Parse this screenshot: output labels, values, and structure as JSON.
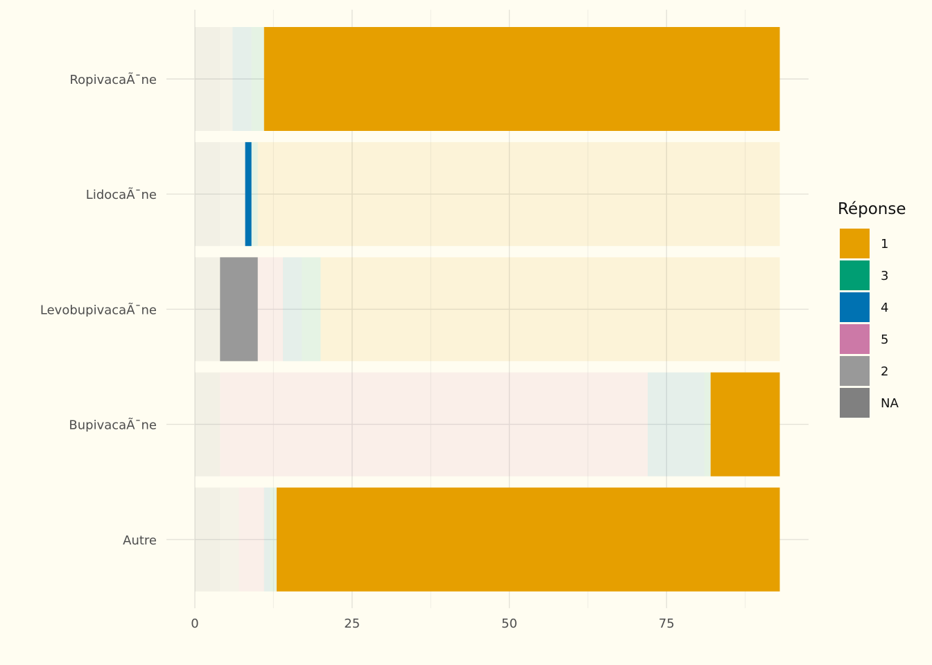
{
  "chart_data": {
    "type": "bar",
    "orientation": "horizontal",
    "stacked": true,
    "categories": [
      "RopivacaÃ¯ne",
      "LidocaÃ¯ne",
      "LevobupivacaÃ¯ne",
      "BupivacaÃ¯ne",
      "Autre"
    ],
    "x_ticks": [
      0,
      25,
      50,
      75
    ],
    "xlim": [
      0,
      93
    ],
    "grid": true,
    "legend": {
      "title": "Réponse",
      "position": "right",
      "entries": [
        {
          "label": "1",
          "color": "#E69F00"
        },
        {
          "label": "3",
          "color": "#009E73"
        },
        {
          "label": "4",
          "color": "#0072B2"
        },
        {
          "label": "5",
          "color": "#CC79A7"
        },
        {
          "label": "2",
          "color": "#999999"
        },
        {
          "label": "NA",
          "color": "#808080"
        }
      ]
    },
    "highlighted": {
      "RopivacaÃ¯ne": "1",
      "LidocaÃ¯ne": "4",
      "LevobupivacaÃ¯ne": "2",
      "BupivacaÃ¯ne": "1",
      "Autre": "1"
    },
    "series": [
      {
        "name": "NA",
        "values": [
          4,
          4,
          4,
          4,
          4
        ]
      },
      {
        "name": "2",
        "values": [
          2,
          4,
          6,
          0,
          3
        ]
      },
      {
        "name": "5",
        "values": [
          0,
          0,
          4,
          68,
          4
        ]
      },
      {
        "name": "4",
        "values": [
          3,
          1,
          3,
          9,
          1
        ]
      },
      {
        "name": "3",
        "values": [
          2,
          1,
          3,
          1,
          1
        ]
      },
      {
        "name": "1",
        "values": [
          82,
          83,
          73,
          11,
          80
        ]
      }
    ]
  }
}
